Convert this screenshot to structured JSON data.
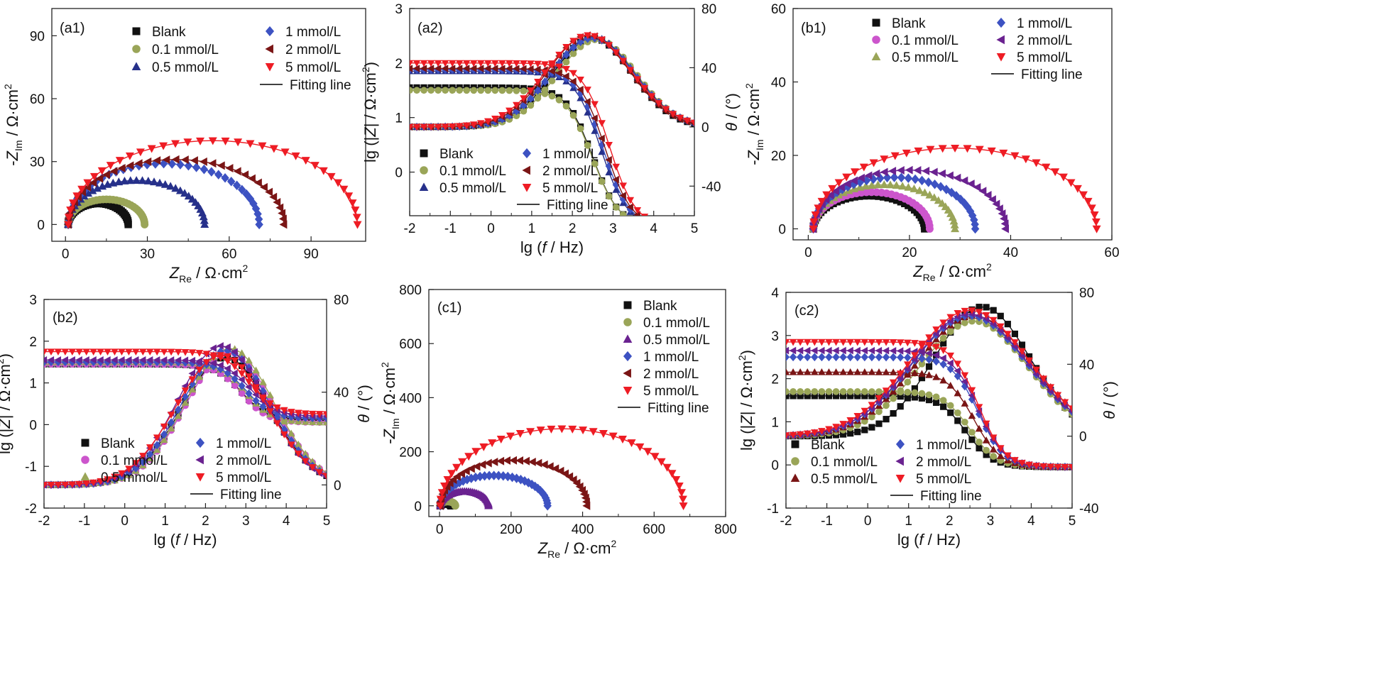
{
  "colors": {
    "Blank": "#111111",
    "0.1 mmol/L": "#9aa558",
    "0.1 mmol/L (b1)": "#cc55cc",
    "0.5 mmol/L (a)": "#26308a",
    "0.5 mmol/L (b)": "#9aa558",
    "0.5 mmol/L (c1)": "#6a2290",
    "0.5 mmol/L (c2)": "#7a1515",
    "1 mmol/L": "#3d52c2",
    "2 mmol/L (a,c)": "#7a1515",
    "2 mmol/L (b)": "#6a2290",
    "5 mmol/L": "#ee1c24",
    "fit": "#000000"
  },
  "chart_data": [
    {
      "id": "a1",
      "panel_label": "(a1)",
      "type": "scatter",
      "xlabel": "Z_Re / Ω·cm2",
      "ylabel": "-Z_Im / Ω·cm2",
      "xlim": [
        -5,
        110
      ],
      "ylim": [
        -8,
        103
      ],
      "xticks": [
        0,
        30,
        60,
        90
      ],
      "yticks": [
        0,
        30,
        60,
        90
      ],
      "legend": [
        "Blank",
        "0.1 mmol/L",
        "0.5 mmol/L",
        "1 mmol/L",
        "2 mmol/L",
        "5 mmol/L",
        "Fitting line"
      ],
      "series": [
        {
          "name": "Blank",
          "marker": "square",
          "color_key": "Blank",
          "kind": "nyquist",
          "x0": 1,
          "diameter": 22,
          "peak": 10
        },
        {
          "name": "0.1 mmol/L",
          "marker": "circle",
          "color_key": "0.1 mmol/L",
          "kind": "nyquist",
          "x0": 1,
          "diameter": 28,
          "peak": 12
        },
        {
          "name": "0.5 mmol/L",
          "marker": "triangle-up",
          "color_key": "0.5 mmol/L (a)",
          "kind": "nyquist",
          "x0": 1,
          "diameter": 50,
          "peak": 21
        },
        {
          "name": "1 mmol/L",
          "marker": "diamond",
          "color_key": "1 mmol/L",
          "kind": "nyquist",
          "x0": 1,
          "diameter": 70,
          "peak": 29
        },
        {
          "name": "2 mmol/L",
          "marker": "triangle-left",
          "color_key": "2 mmol/L (a,c)",
          "kind": "nyquist",
          "x0": 1,
          "diameter": 79,
          "peak": 31
        },
        {
          "name": "5 mmol/L",
          "marker": "triangle-down",
          "color_key": "5 mmol/L",
          "kind": "nyquist",
          "x0": 1,
          "diameter": 106,
          "peak": 40
        }
      ]
    },
    {
      "id": "a2",
      "panel_label": "(a2)",
      "type": "line",
      "xlabel": "lg (f / Hz)",
      "ylabel": "lg (|Z| / Ω·cm2)",
      "y2label": "θ / (°)",
      "xlim": [
        -2,
        5
      ],
      "ylim": [
        -0.8,
        3
      ],
      "y2lim": [
        -60,
        80
      ],
      "xticks": [
        -2,
        -1,
        0,
        1,
        2,
        3,
        4,
        5
      ],
      "yticks": [
        0,
        1,
        2,
        3
      ],
      "y2ticks": [
        -40,
        0,
        40,
        80
      ],
      "legend": [
        "Blank",
        "0.1 mmol/L",
        "0.5 mmol/L",
        "1 mmol/L",
        "2 mmol/L",
        "5 mmol/L",
        "Fitting line"
      ],
      "series": [
        {
          "name": "Blank",
          "marker": "square",
          "color_key": "Blank",
          "mag": [
            -1.0,
            1.55,
            0.08,
            1.6
          ],
          "phase": [
            2.5,
            60,
            2.5
          ]
        },
        {
          "name": "0.1 mmol/L",
          "marker": "circle",
          "color_key": "0.1 mmol/L",
          "mag": [
            -1.0,
            1.5,
            0.05,
            1.6
          ],
          "phase": [
            2.6,
            59,
            2.5
          ]
        },
        {
          "name": "0.5 mmol/L",
          "marker": "triangle-up",
          "color_key": "0.5 mmol/L (a)",
          "mag": [
            -1.0,
            1.85,
            0.05,
            1.8
          ],
          "phase": [
            2.5,
            61,
            2.6
          ]
        },
        {
          "name": "1 mmol/L",
          "marker": "diamond",
          "color_key": "1 mmol/L",
          "mag": [
            -1.0,
            1.88,
            0.05,
            1.85
          ],
          "phase": [
            2.5,
            60,
            2.6
          ]
        },
        {
          "name": "2 mmol/L",
          "marker": "triangle-left",
          "color_key": "2 mmol/L (a,c)",
          "mag": [
            -1.0,
            1.9,
            0.05,
            1.9
          ],
          "phase": [
            2.4,
            62,
            2.6
          ]
        },
        {
          "name": "5 mmol/L",
          "marker": "triangle-down",
          "color_key": "5 mmol/L",
          "mag": [
            -1.0,
            2.0,
            0.05,
            2.0
          ],
          "phase": [
            2.4,
            62,
            2.7
          ]
        }
      ]
    },
    {
      "id": "b1",
      "panel_label": "(b1)",
      "type": "scatter",
      "xlabel": "Z_Re / Ω·cm2",
      "ylabel": "-Z_Im / Ω·cm2",
      "xlim": [
        -3,
        60
      ],
      "ylim": [
        -3,
        60
      ],
      "xticks": [
        0,
        20,
        40,
        60
      ],
      "yticks": [
        0,
        20,
        40,
        60
      ],
      "legend": [
        "Blank",
        "0.1 mmol/L",
        "0.5 mmol/L",
        "1 mmol/L",
        "2 mmol/L",
        "5 mmol/L",
        "Fitting line"
      ],
      "series": [
        {
          "name": "Blank",
          "marker": "square",
          "color_key": "Blank",
          "kind": "nyquist",
          "x0": 1,
          "diameter": 22,
          "peak": 9
        },
        {
          "name": "0.1 mmol/L",
          "marker": "circle",
          "color_key": "0.1 mmol/L (b1)",
          "kind": "nyquist",
          "x0": 1,
          "diameter": 23,
          "peak": 10
        },
        {
          "name": "0.5 mmol/L",
          "marker": "triangle-up",
          "color_key": "0.5 mmol/L (b)",
          "kind": "nyquist",
          "x0": 1,
          "diameter": 28,
          "peak": 12
        },
        {
          "name": "1 mmol/L",
          "marker": "diamond",
          "color_key": "1 mmol/L",
          "kind": "nyquist",
          "x0": 1,
          "diameter": 32,
          "peak": 14
        },
        {
          "name": "2 mmol/L",
          "marker": "triangle-left",
          "color_key": "2 mmol/L (b)",
          "kind": "nyquist",
          "x0": 1,
          "diameter": 38,
          "peak": 16
        },
        {
          "name": "5 mmol/L",
          "marker": "triangle-down",
          "color_key": "5 mmol/L",
          "kind": "nyquist",
          "x0": 1,
          "diameter": 56,
          "peak": 22
        }
      ]
    },
    {
      "id": "b2",
      "panel_label": "(b2)",
      "type": "line",
      "xlabel": "lg (f / Hz)",
      "ylabel": "lg (|Z| / Ω·cm2)",
      "y2label": "θ / (°)",
      "xlim": [
        -2,
        5
      ],
      "ylim": [
        -2,
        3
      ],
      "y2lim": [
        -10,
        80
      ],
      "xticks": [
        -2,
        -1,
        0,
        1,
        2,
        3,
        4,
        5
      ],
      "yticks": [
        -2,
        -1,
        0,
        1,
        2,
        3
      ],
      "y2ticks": [
        0,
        40,
        80
      ],
      "legend": [
        "Blank",
        "0.1 mmol/L",
        "0.5 mmol/L",
        "1 mmol/L",
        "2 mmol/L",
        "5 mmol/L",
        "Fitting line"
      ],
      "series": [
        {
          "name": "Blank",
          "marker": "square",
          "color_key": "Blank",
          "mag": [
            0.1,
            1.45,
            0.1,
            2.0
          ],
          "phase": [
            2.5,
            55,
            2.8
          ]
        },
        {
          "name": "0.1 mmol/L",
          "marker": "circle",
          "color_key": "0.1 mmol/L (b1)",
          "mag": [
            0.05,
            1.45,
            0.1,
            2.0
          ],
          "phase": [
            2.6,
            57,
            2.8
          ]
        },
        {
          "name": "0.5 mmol/L",
          "marker": "triangle-up",
          "color_key": "0.5 mmol/L (b)",
          "mag": [
            0.05,
            1.5,
            0.1,
            2.1
          ],
          "phase": [
            2.6,
            59,
            2.8
          ]
        },
        {
          "name": "1 mmol/L",
          "marker": "diamond",
          "color_key": "1 mmol/L",
          "mag": [
            0.15,
            1.5,
            0.1,
            2.1
          ],
          "phase": [
            2.5,
            58,
            2.8
          ]
        },
        {
          "name": "2 mmol/L",
          "marker": "triangle-left",
          "color_key": "2 mmol/L (b)",
          "mag": [
            0.2,
            1.55,
            0.1,
            2.2
          ],
          "phase": [
            2.4,
            60,
            2.8
          ]
        },
        {
          "name": "5 mmol/L",
          "marker": "triangle-down",
          "color_key": "5 mmol/L",
          "mag": [
            0.25,
            1.75,
            0.1,
            2.2
          ],
          "phase": [
            2.4,
            56,
            2.9
          ]
        }
      ]
    },
    {
      "id": "c1",
      "panel_label": "(c1)",
      "type": "scatter",
      "xlabel": "Z_Re / Ω·cm2",
      "ylabel": "-Z_Im / Ω·cm2",
      "xlim": [
        -30,
        800
      ],
      "ylim": [
        -40,
        800
      ],
      "xticks": [
        0,
        200,
        400,
        600,
        800
      ],
      "yticks": [
        0,
        200,
        400,
        600,
        800
      ],
      "legend": [
        "Blank",
        "0.1 mmol/L",
        "0.5 mmol/L",
        "1 mmol/L",
        "2 mmol/L",
        "5 mmol/L",
        "Fitting line"
      ],
      "series": [
        {
          "name": "Blank",
          "marker": "square",
          "color_key": "Blank",
          "kind": "nyquist",
          "x0": 2,
          "diameter": 30,
          "peak": 8
        },
        {
          "name": "0.1 mmol/L",
          "marker": "circle",
          "color_key": "0.1 mmol/L",
          "kind": "nyquist",
          "x0": 2,
          "diameter": 42,
          "peak": 16
        },
        {
          "name": "0.5 mmol/L",
          "marker": "triangle-up",
          "color_key": "0.5 mmol/L (c1)",
          "kind": "nyquist",
          "x0": 2,
          "diameter": 135,
          "peak": 53
        },
        {
          "name": "1 mmol/L",
          "marker": "diamond",
          "color_key": "1 mmol/L",
          "kind": "nyquist",
          "x0": 2,
          "diameter": 300,
          "peak": 112
        },
        {
          "name": "2 mmol/L",
          "marker": "triangle-left",
          "color_key": "2 mmol/L (a,c)",
          "kind": "nyquist",
          "x0": 2,
          "diameter": 410,
          "peak": 168
        },
        {
          "name": "5 mmol/L",
          "marker": "triangle-down",
          "color_key": "5 mmol/L",
          "kind": "nyquist",
          "x0": 2,
          "diameter": 680,
          "peak": 285
        }
      ]
    },
    {
      "id": "c2",
      "panel_label": "(c2)",
      "type": "line",
      "xlabel": "lg (f / Hz)",
      "ylabel": "lg (|Z| / Ω·cm2)",
      "y2label": "θ / (°)",
      "xlim": [
        -2,
        5
      ],
      "ylim": [
        -1,
        4
      ],
      "y2lim": [
        -40,
        80
      ],
      "xticks": [
        -2,
        -1,
        0,
        1,
        2,
        3,
        4,
        5
      ],
      "yticks": [
        -1,
        0,
        1,
        2,
        3,
        4
      ],
      "y2ticks": [
        -40,
        0,
        40,
        80
      ],
      "legend": [
        "Blank",
        "0.1 mmol/L",
        "0.5 mmol/L",
        "1 mmol/L",
        "2 mmol/L",
        "5 mmol/L",
        "Fitting line"
      ],
      "series": [
        {
          "name": "Blank",
          "marker": "square",
          "color_key": "Blank",
          "mag": [
            -0.05,
            1.6,
            0.6,
            1.5
          ],
          "phase": [
            2.8,
            72,
            3.0
          ]
        },
        {
          "name": "0.1 mmol/L",
          "marker": "circle",
          "color_key": "0.1 mmol/L",
          "mag": [
            -0.05,
            1.7,
            0.8,
            1.6
          ],
          "phase": [
            2.6,
            64,
            3.4
          ]
        },
        {
          "name": "0.5 mmol/L",
          "marker": "triangle-up",
          "color_key": "0.5 mmol/L (c2)",
          "mag": [
            -0.05,
            2.15,
            1.0,
            1.7
          ],
          "phase": [
            2.6,
            67,
            3.6
          ]
        },
        {
          "name": "1 mmol/L",
          "marker": "diamond",
          "color_key": "1 mmol/L",
          "mag": [
            -0.05,
            2.5,
            1.2,
            1.8
          ],
          "phase": [
            2.5,
            67,
            3.6
          ]
        },
        {
          "name": "2 mmol/L",
          "marker": "triangle-left",
          "color_key": "0.5 mmol/L (c1)",
          "mag": [
            -0.05,
            2.65,
            1.2,
            1.8
          ],
          "phase": [
            2.5,
            68,
            3.6
          ]
        },
        {
          "name": "5 mmol/L",
          "marker": "triangle-down",
          "color_key": "5 mmol/L",
          "mag": [
            -0.05,
            2.85,
            1.3,
            1.8
          ],
          "phase": [
            2.5,
            70,
            3.7
          ]
        }
      ]
    }
  ]
}
